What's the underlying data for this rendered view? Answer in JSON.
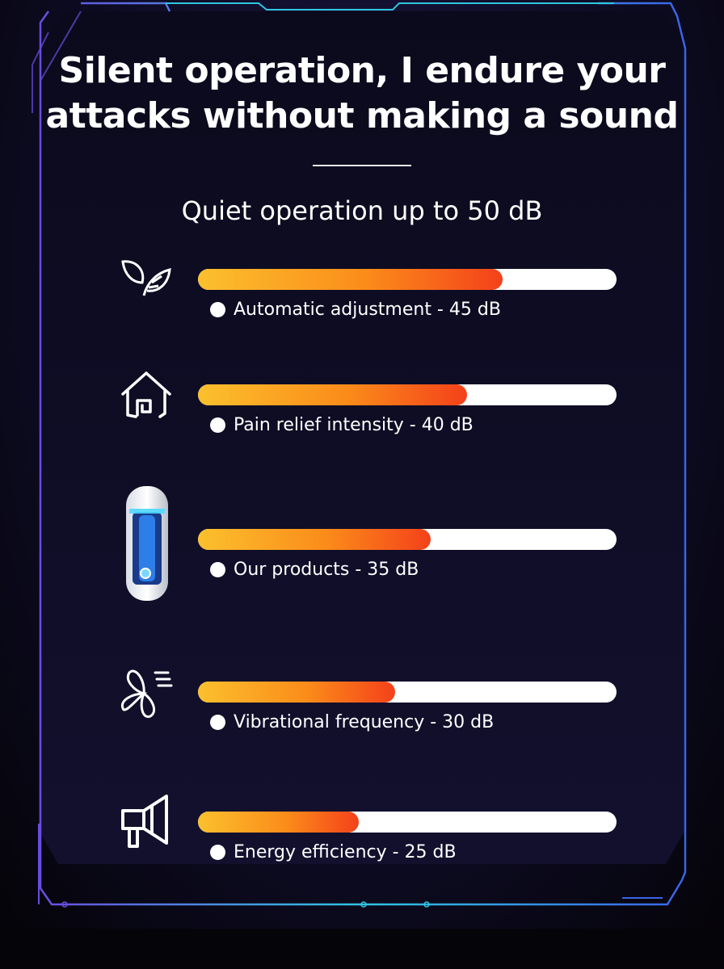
{
  "header": {
    "title_line1": "Silent operation, I endure your",
    "title_line2": "attacks without making a sound",
    "subtitle": "Quiet operation up to 50 dB"
  },
  "colors": {
    "bar_gradient_start": "#fbc02d",
    "bar_gradient_end": "#f4411a",
    "track": "#ffffff",
    "frame_purple": "#6a4ce0",
    "frame_cyan": "#2fc6e0",
    "background": "#0d0b22"
  },
  "chart_data": {
    "type": "bar",
    "orientation": "horizontal",
    "unit": "dB",
    "categories": [
      "Automatic adjustment",
      "Pain relief intensity",
      "Our products",
      "Vibrational frequency",
      "Energy efficiency"
    ],
    "values": [
      45,
      40,
      35,
      30,
      25
    ],
    "labels": [
      "Automatic adjustment - 45 dB",
      "Pain relief intensity - 40 dB",
      "Our products - 35 dB",
      "Vibrational frequency - 30 dB",
      "Energy efficiency - 25 dB"
    ],
    "icons": [
      "leaf-icon",
      "house-icon",
      "product-image",
      "fan-icon",
      "megaphone-icon"
    ],
    "grid": false,
    "legend": "none"
  }
}
